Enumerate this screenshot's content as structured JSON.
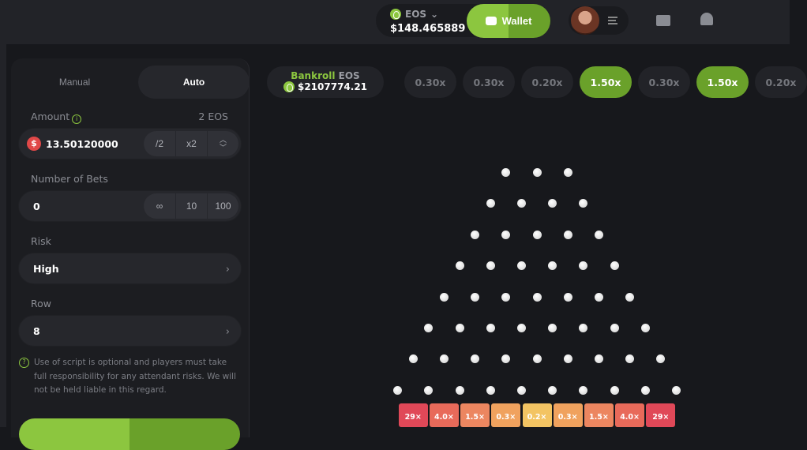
{
  "header": {
    "currency": "EOS",
    "balance": "$148.465889",
    "wallet_label": "Wallet",
    "icons": [
      "eos-icon",
      "chevron-down-icon",
      "wallet-icon",
      "avatar",
      "menu-icon",
      "mail-icon",
      "bell-icon"
    ]
  },
  "panel": {
    "tabs": [
      {
        "label": "Manual",
        "active": false
      },
      {
        "label": "Auto",
        "active": true
      }
    ],
    "amount": {
      "label": "Amount",
      "unit_hint": "2 EOS",
      "value": "13.50120000",
      "half": "/2",
      "double": "x2"
    },
    "bets": {
      "label": "Number of Bets",
      "value": "0",
      "options": [
        "∞",
        "10",
        "100"
      ]
    },
    "risk": {
      "label": "Risk",
      "value": "High"
    },
    "row": {
      "label": "Row",
      "value": "8"
    },
    "note": "Use of script is optional and players must take full responsibility for any attendant risks. We will not be held liable in this regard."
  },
  "bankroll": {
    "label": "Bankroll",
    "currency": "EOS",
    "amount": "$2107774.21"
  },
  "history": [
    {
      "v": "0.30x",
      "win": false
    },
    {
      "v": "0.30x",
      "win": false
    },
    {
      "v": "0.20x",
      "win": false
    },
    {
      "v": "1.50x",
      "win": true
    },
    {
      "v": "0.30x",
      "win": false
    },
    {
      "v": "1.50x",
      "win": true
    },
    {
      "v": "0.20x",
      "win": false
    }
  ],
  "board": {
    "rows": 8,
    "multipliers": [
      "29×",
      "4.0×",
      "1.5×",
      "0.3×",
      "0.2×",
      "0.3×",
      "1.5×",
      "4.0×",
      "29×"
    ],
    "colors": [
      "#e04858",
      "#e86a5a",
      "#ec8660",
      "#f0a25e",
      "#f3c463",
      "#f0a25e",
      "#ec8660",
      "#e86a5a",
      "#e04858"
    ]
  },
  "colors": {
    "accent": "#8cc63f",
    "accent_dark": "#6aa12a"
  }
}
